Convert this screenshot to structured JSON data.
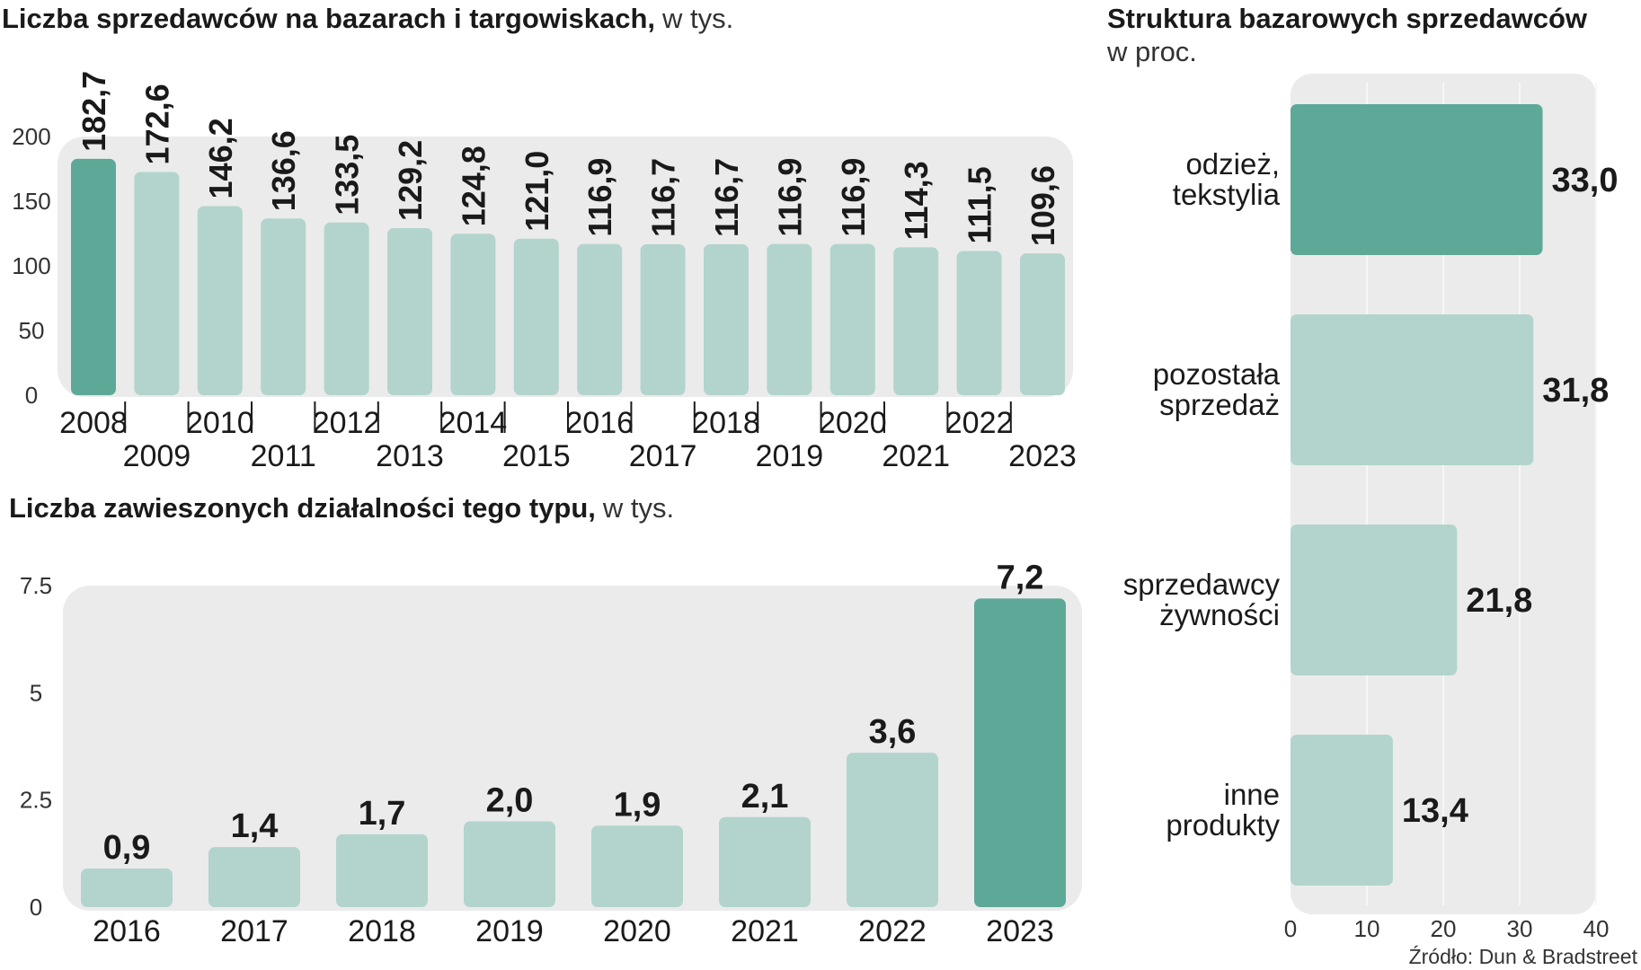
{
  "colors": {
    "highlight": "#5ea898",
    "normal": "#b2d4cc",
    "panel": "#ebebeb",
    "grid": "#f7f7f7"
  },
  "source": "Źródło: Dun & Bradstreet",
  "chart_data": [
    {
      "id": "chart1",
      "type": "bar",
      "title": "Liczba sprzedawców na bazarach i targowiskach,",
      "unit": "w tys.",
      "categories": [
        "2008",
        "2009",
        "2010",
        "2011",
        "2012",
        "2013",
        "2014",
        "2015",
        "2016",
        "2017",
        "2018",
        "2019",
        "2020",
        "2021",
        "2022",
        "2023"
      ],
      "values": [
        182.7,
        172.6,
        146.2,
        136.6,
        133.5,
        129.2,
        124.8,
        121.0,
        116.9,
        116.7,
        116.7,
        116.9,
        116.9,
        114.3,
        111.5,
        109.6
      ],
      "value_labels": [
        "182,7",
        "172,6",
        "146,2",
        "136,6",
        "133,5",
        "129,2",
        "124,8",
        "121,0",
        "116,9",
        "116,7",
        "116,7",
        "116,9",
        "116,9",
        "114,3",
        "111,5",
        "109,6"
      ],
      "highlight": [
        "2008"
      ],
      "ylim": [
        0,
        200
      ],
      "yticks": [
        "0",
        "50",
        "100",
        "150",
        "200"
      ],
      "ytick_values": [
        0,
        50,
        100,
        150,
        200
      ]
    },
    {
      "id": "chart2",
      "type": "bar",
      "title": "Liczba zawieszonych działalności tego typu,",
      "unit": "w tys.",
      "categories": [
        "2016",
        "2017",
        "2018",
        "2019",
        "2020",
        "2021",
        "2022",
        "2023"
      ],
      "values": [
        0.9,
        1.4,
        1.7,
        2.0,
        1.9,
        2.1,
        3.6,
        7.2
      ],
      "value_labels": [
        "0,9",
        "1,4",
        "1,7",
        "2,0",
        "1,9",
        "2,1",
        "3,6",
        "7,2"
      ],
      "highlight": [
        "2023"
      ],
      "ylim": [
        0,
        7.5
      ],
      "yticks": [
        "0",
        "2.5",
        "5",
        "7.5"
      ],
      "ytick_values": [
        0,
        2.5,
        5,
        7.5
      ]
    },
    {
      "id": "chart3",
      "type": "bar",
      "orientation": "horizontal",
      "title": "Struktura bazarowych sprzedawców",
      "unit": "w proc.",
      "categories": [
        [
          "odzież,",
          "tekstylia"
        ],
        [
          "pozostała",
          "sprzedaż"
        ],
        [
          "sprzedawcy",
          "żywności"
        ],
        [
          "inne",
          "produkty"
        ]
      ],
      "values": [
        33.0,
        31.8,
        21.8,
        13.4
      ],
      "value_labels": [
        "33,0",
        "31,8",
        "21,8",
        "13,4"
      ],
      "highlight_index": [
        0
      ],
      "xlim": [
        0,
        40
      ],
      "xticks": [
        "0",
        "10",
        "20",
        "30",
        "40"
      ],
      "xtick_values": [
        0,
        10,
        20,
        30,
        40
      ]
    }
  ]
}
